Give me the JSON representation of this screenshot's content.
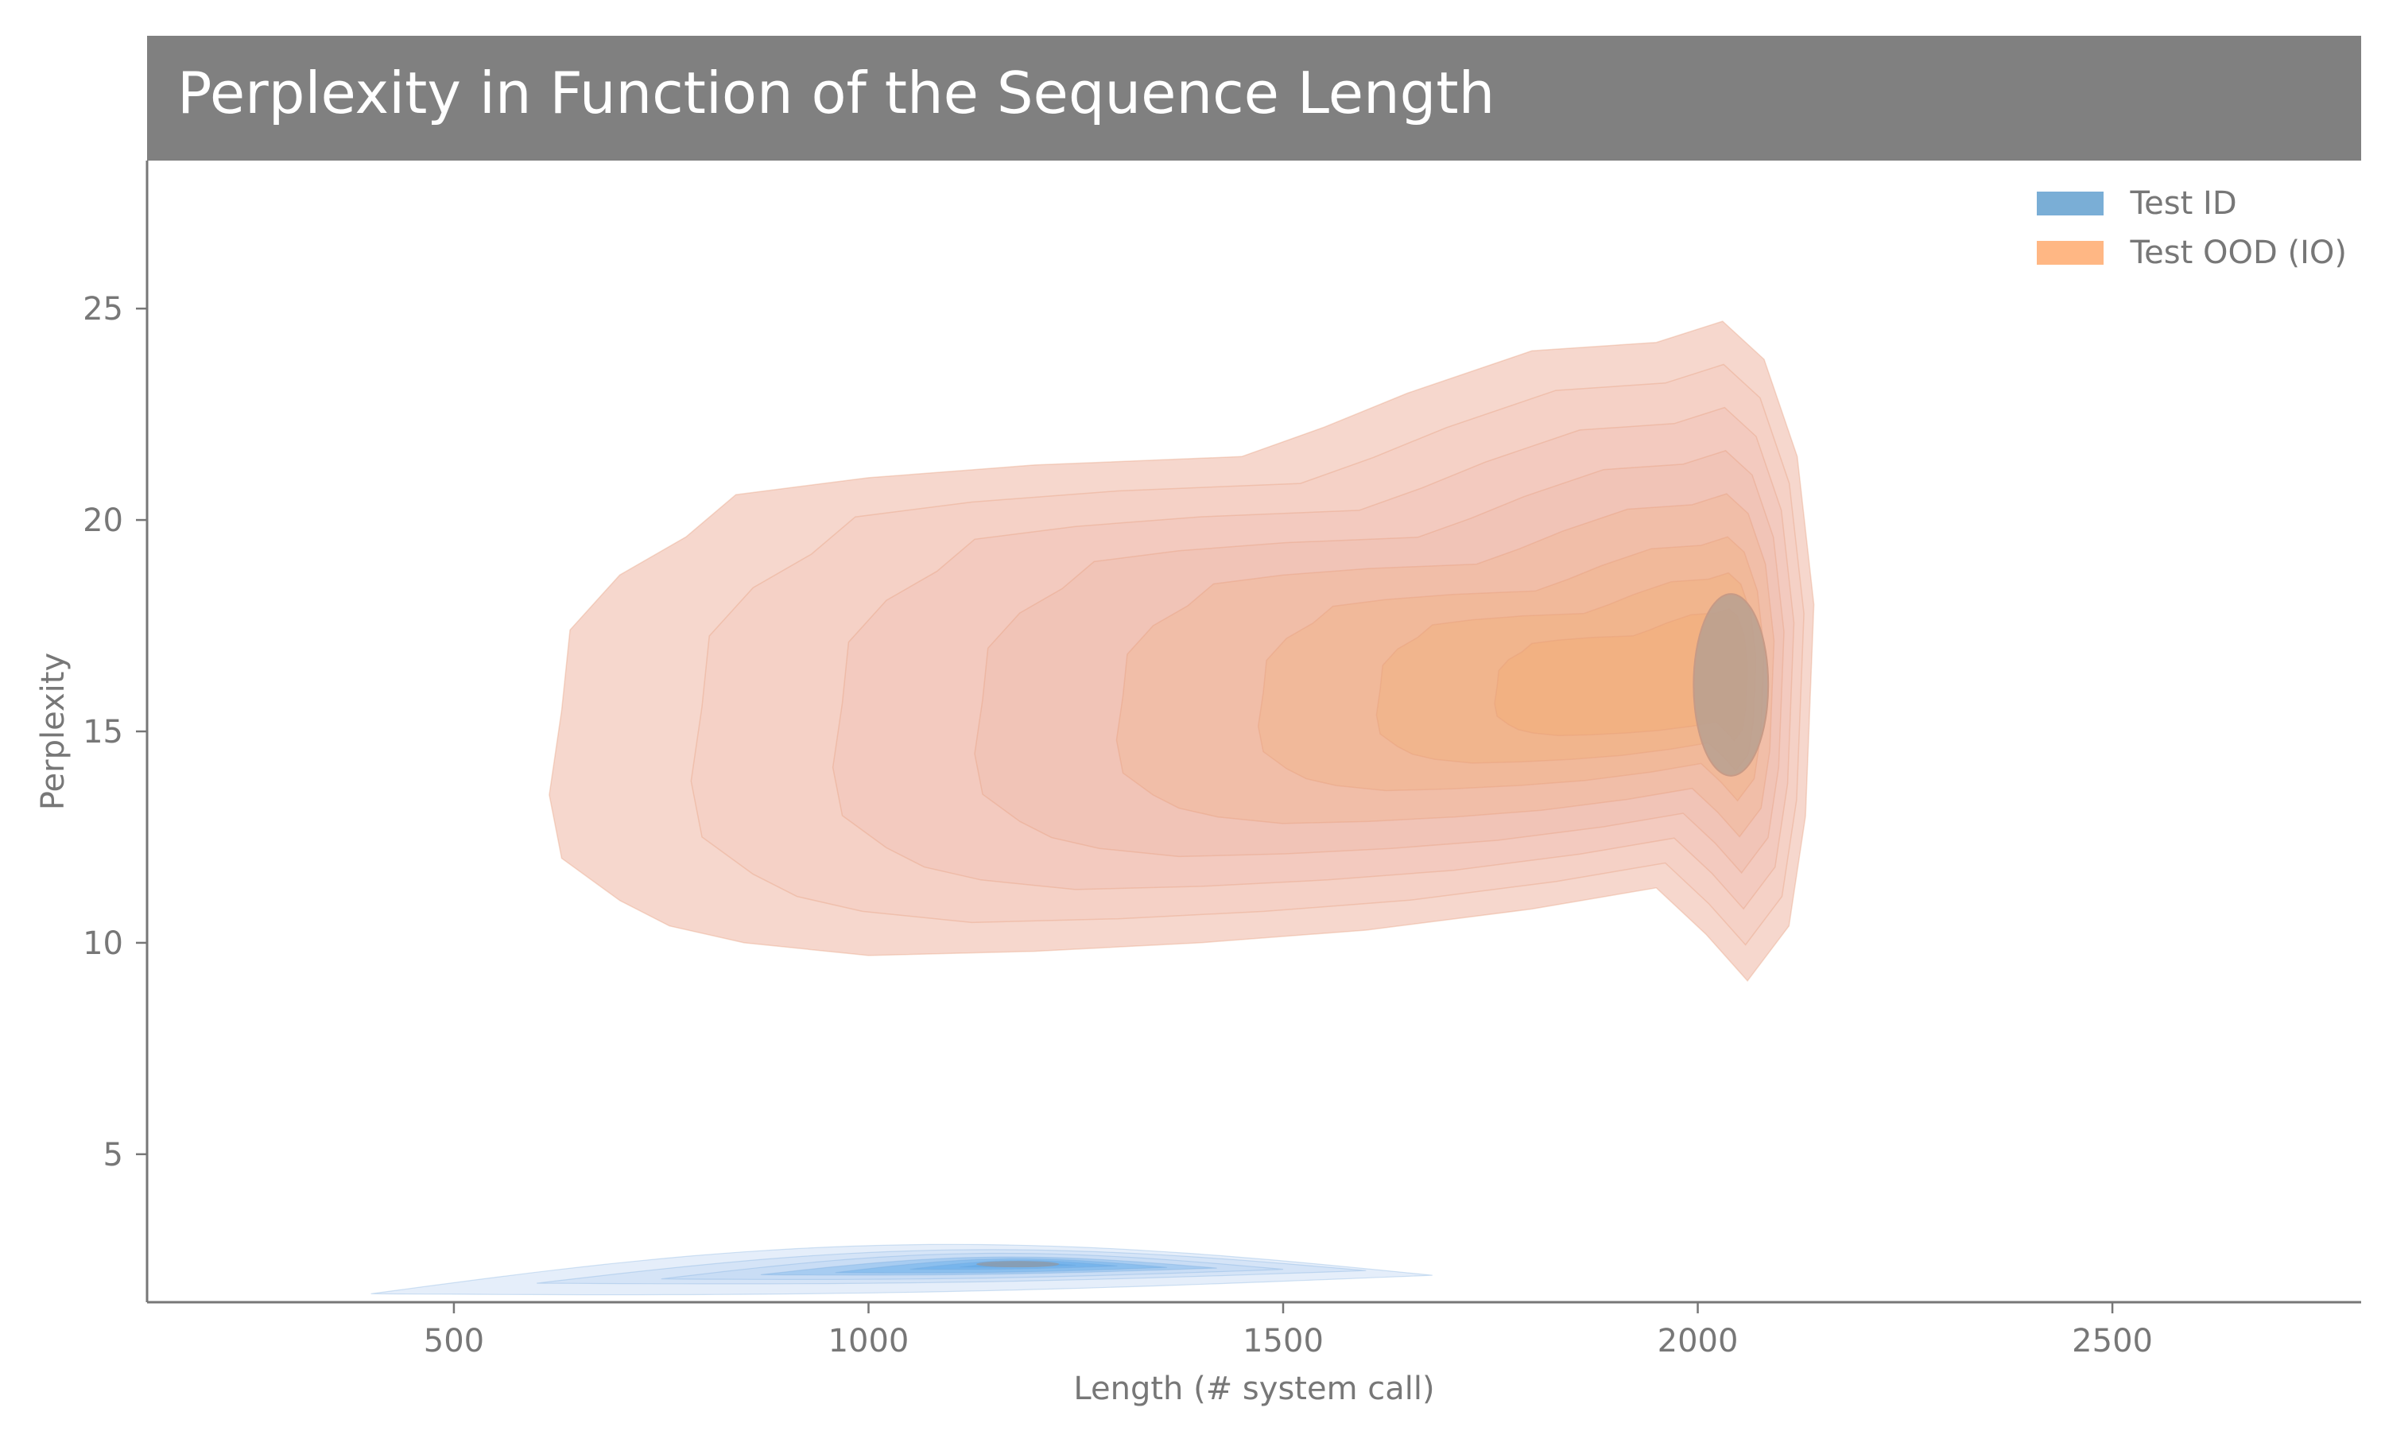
{
  "chart_data": {
    "type": "kde_contour",
    "title": "Perplexity in Function of the Sequence Length",
    "xlabel": "Length (# system call)",
    "ylabel": "Perplexity",
    "xlim": [
      130,
      2800
    ],
    "ylim": [
      1.5,
      28.5
    ],
    "xticks": [
      500,
      1000,
      1500,
      2000,
      2500
    ],
    "yticks": [
      5,
      10,
      15,
      20,
      25
    ],
    "grid": false,
    "legend_position": "top-right",
    "series": [
      {
        "name": "Test ID",
        "color": "#7aaed6",
        "fill_color": "#5aa7e8",
        "center": [
          1180,
          2.4
        ],
        "x_range": [
          400,
          1680
        ],
        "y_range": [
          1.7,
          2.95
        ]
      },
      {
        "name": "Test OOD (IO)",
        "color": "#ffb784",
        "fill_color": "#eaa088",
        "center": [
          2040,
          16.2
        ],
        "x_range": [
          610,
          2140
        ],
        "y_range": [
          9.1,
          24.7
        ]
      }
    ]
  }
}
